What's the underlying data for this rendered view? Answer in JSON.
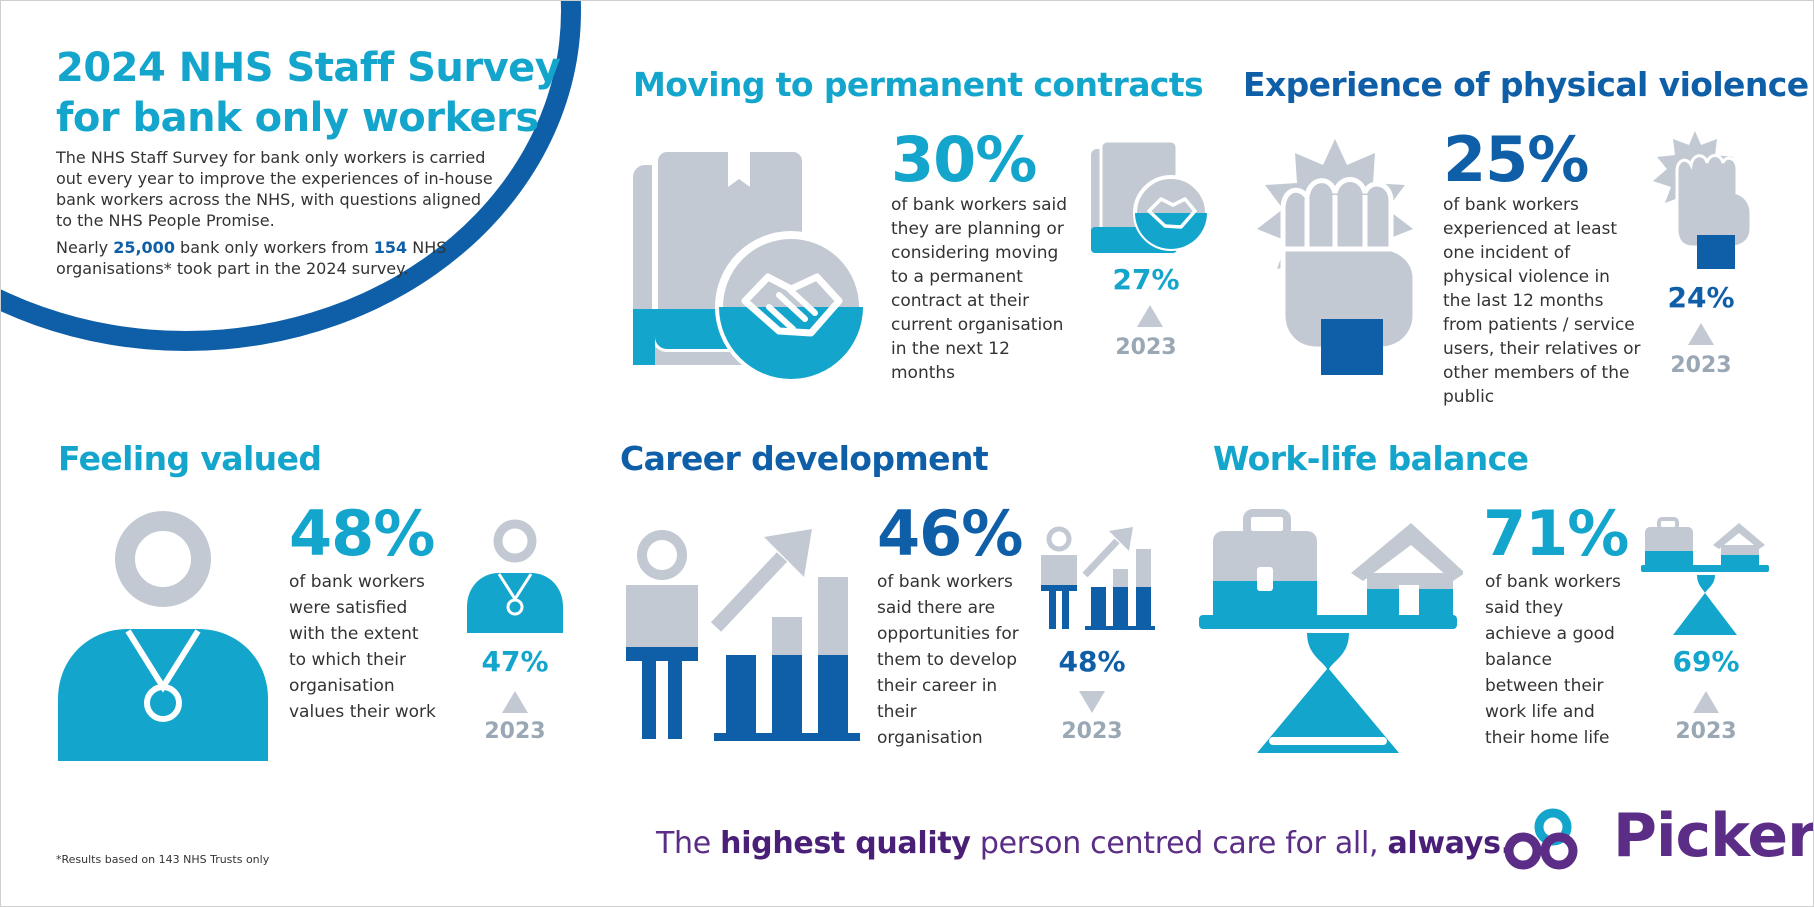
{
  "intro": {
    "title_line1": "2024 NHS Staff Survey",
    "title_line2": "for bank only workers",
    "description": "The NHS Staff Survey for bank only workers is carried out every year to improve the experiences of in-house bank workers across the NHS, with questions aligned to the NHS People Promise.",
    "participation_prefix": "Nearly ",
    "participation_count": "25,000",
    "participation_middle": " bank only workers from ",
    "participation_orgs": "154",
    "participation_suffix": " NHS organisations* took part in the 2024 survey."
  },
  "sections": {
    "contracts": {
      "title": "Moving to permanent contracts",
      "percent": "30%",
      "description": "of bank workers said they are planning or considering moving to a permanent contract at their current organisation in the next 12 months",
      "prev_percent": "27%",
      "prev_year": "2023",
      "trend": "up"
    },
    "violence": {
      "title": "Experience of physical violence",
      "percent": "25%",
      "description": "of bank workers experienced at least one incident of physical violence in the last 12 months from patients / service users, their relatives or other members of the public",
      "prev_percent": "24%",
      "prev_year": "2023",
      "trend": "up"
    },
    "valued": {
      "title": "Feeling valued",
      "percent": "48%",
      "description": "of bank workers were satisfied with the extent to which their organisation values their work",
      "prev_percent": "47%",
      "prev_year": "2023",
      "trend": "up"
    },
    "career": {
      "title": "Career development",
      "percent": "46%",
      "description": "of bank workers said there are opportunities for them to develop their career in their organisation",
      "prev_percent": "48%",
      "prev_year": "2023",
      "trend": "down"
    },
    "worklife": {
      "title": "Work-life balance",
      "percent": "71%",
      "description": "of bank workers said they achieve a good balance between their work life and their home life",
      "prev_percent": "69%",
      "prev_year": "2023",
      "trend": "up"
    }
  },
  "footer": {
    "footnote": "*Results based on 143 NHS Trusts only",
    "tagline_part1": "The ",
    "tagline_bold1": "highest quality",
    "tagline_part2": " person centred care for all, ",
    "tagline_bold2": "always.",
    "logo_text": "Picker"
  },
  "colors": {
    "light_blue": "#13a5cc",
    "dark_blue": "#0f5fa8",
    "grey": "#c2c9d2",
    "purple": "#5b2d86"
  },
  "icons": {
    "contracts": "handshake-document-icon",
    "violence": "raised-fist-icon",
    "valued": "staff-person-icon",
    "career": "career-growth-chart-icon",
    "worklife": "work-home-balance-icon",
    "logo": "picker-logo-icon"
  }
}
